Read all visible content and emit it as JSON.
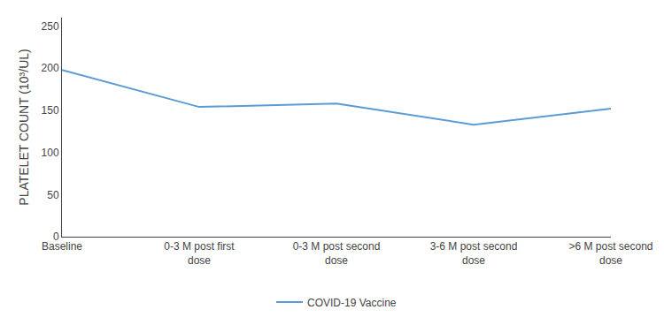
{
  "chart_data": {
    "type": "line",
    "categories": [
      "Baseline",
      "0-3 M post first\ndose",
      "0-3 M post second\ndose",
      "3-6 M post second\ndose",
      ">6 M post second\ndose"
    ],
    "series": [
      {
        "name": "COVID-19 Vaccine",
        "color": "#5B9BD5",
        "values": [
          198,
          154,
          158,
          133,
          152
        ]
      }
    ],
    "ylabel": "PLATELET COUNT (10³/UL)",
    "ylim": [
      0,
      260
    ],
    "yticks": [
      0,
      50,
      100,
      150,
      200,
      250
    ],
    "grid": false,
    "legend": "bottom"
  }
}
